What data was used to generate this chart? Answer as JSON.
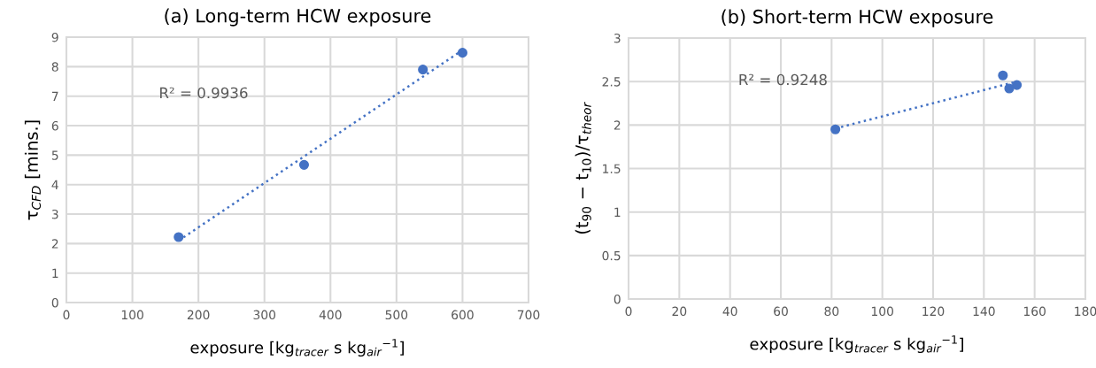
{
  "chart_data": [
    {
      "type": "scatter",
      "title": "(a) Long-term HCW exposure",
      "xlabel": "exposure [kg$_{tracer}$ s kg$_{air}$$^{−1}$]",
      "ylabel": "τ$_{CFD}$ [mins.]",
      "annotations": [
        "R² = 0.9936"
      ],
      "xlim": [
        0,
        700
      ],
      "xticks": [
        0,
        100,
        200,
        300,
        400,
        500,
        600,
        700
      ],
      "ylim": [
        0,
        9
      ],
      "yticks": [
        0,
        1,
        2,
        3,
        4,
        5,
        6,
        7,
        8,
        9
      ],
      "grid": true,
      "legend": false,
      "marker": "circle",
      "series": [
        {
          "color": "#4472c4",
          "x": [
            170,
            360,
            540,
            600
          ],
          "values": [
            2.22,
            4.67,
            7.9,
            8.47
          ]
        },
        {
          "type": "line",
          "line_style": "dotted",
          "marker": "none",
          "color": "#4472c4",
          "x": [
            170,
            600
          ],
          "values": [
            2.1,
            8.56
          ]
        }
      ]
    },
    {
      "type": "scatter",
      "title": "(b) Short-term HCW exposure",
      "xlabel": "exposure [kg$_{tracer}$ s kg$_{air}$$^{−1}$]",
      "ylabel": "(t$_{90}$ − t$_{10}$)/τ$_{theor}$",
      "annotations": [
        "R² = 0.9248"
      ],
      "xlim": [
        0,
        180
      ],
      "xticks": [
        0,
        20,
        40,
        60,
        80,
        100,
        120,
        140,
        160,
        180
      ],
      "ylim": [
        0,
        3
      ],
      "yticks": [
        0,
        0.5,
        1,
        1.5,
        2,
        2.5,
        3
      ],
      "grid": true,
      "legend": false,
      "marker": "circle",
      "series": [
        {
          "color": "#4472c4",
          "x": [
            81.5,
            147.5,
            150,
            153
          ],
          "values": [
            1.95,
            2.57,
            2.42,
            2.46
          ]
        },
        {
          "type": "line",
          "line_style": "dotted",
          "marker": "none",
          "color": "#4472c4",
          "x": [
            81.5,
            153
          ],
          "values": [
            1.96,
            2.5
          ]
        }
      ]
    }
  ]
}
